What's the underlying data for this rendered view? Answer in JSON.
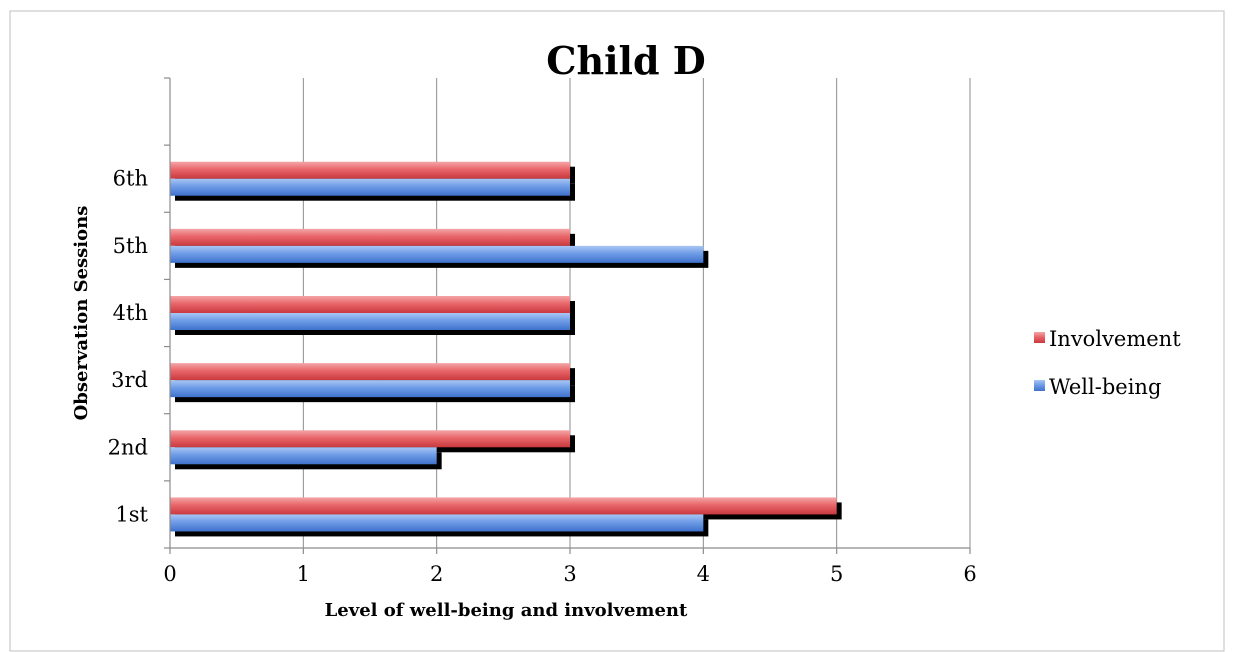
{
  "chart_data": {
    "type": "bar",
    "orientation": "horizontal",
    "title": "Child D",
    "xlabel": "Level of well-being and involvement",
    "ylabel": "Observation Sessions",
    "categories": [
      "1st",
      "2nd",
      "3rd",
      "4th",
      "5th",
      "6th"
    ],
    "series": [
      {
        "name": "Involvement",
        "values": [
          5,
          3,
          3,
          3,
          3,
          3
        ],
        "color": "#e85a5f"
      },
      {
        "name": "Well-being",
        "values": [
          4,
          2,
          3,
          3,
          4,
          3
        ],
        "color": "#5d8fe3"
      }
    ],
    "xlim": [
      0,
      6
    ],
    "xticks": [
      "0",
      "1",
      "2",
      "3",
      "4",
      "5",
      "6"
    ],
    "grid": "vertical",
    "legend": "right"
  }
}
